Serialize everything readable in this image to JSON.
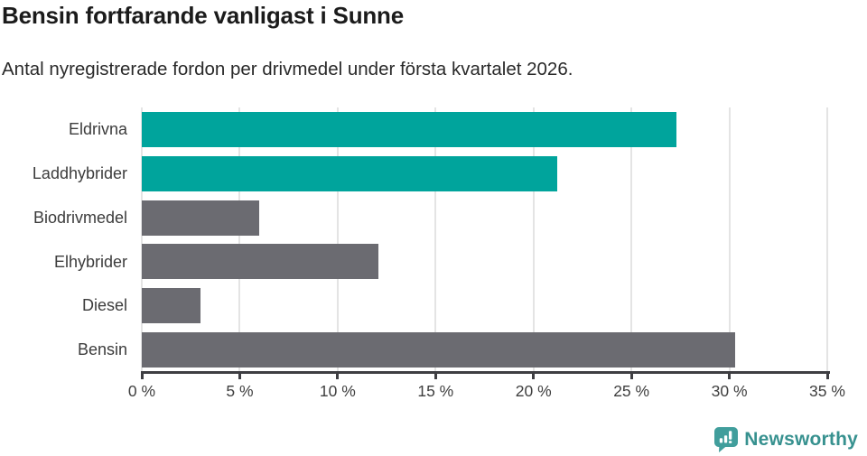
{
  "header": {
    "title": "Bensin fortfarande vanligast i Sunne",
    "subtitle": "Antal nyregistrerade fordon per drivmedel under första kvartalet 2026."
  },
  "chart_data": {
    "type": "bar",
    "orientation": "horizontal",
    "title": "Bensin fortfarande vanligast i Sunne",
    "subtitle": "Antal nyregistrerade fordon per drivmedel under första kvartalet 2026.",
    "categories": [
      "Eldrivna",
      "Laddhybrider",
      "Biodrivmedel",
      "Elhybrider",
      "Diesel",
      "Bensin"
    ],
    "values": [
      27.3,
      21.2,
      6.0,
      12.1,
      3.0,
      30.3
    ],
    "unit": "%",
    "xlim": [
      0,
      35
    ],
    "x_ticks": [
      0,
      5,
      10,
      15,
      20,
      25,
      30,
      35
    ],
    "x_tick_labels": [
      "0 %",
      "5 %",
      "10 %",
      "15 %",
      "20 %",
      "25 %",
      "30 %",
      "35 %"
    ],
    "grid": true,
    "legend": "none",
    "bar_colors": [
      "#00a49c",
      "#00a49c",
      "#6b6b71",
      "#6b6b71",
      "#6b6b71",
      "#6b6b71"
    ],
    "highlight_color": "#00a49c",
    "default_color": "#6b6b71",
    "gridline_color": "#e4e4e4",
    "axis_color": "#3e3e42"
  },
  "footer": {
    "brand": "Newsworthy",
    "brand_color": "#37918f",
    "icon_color": "#419e9c",
    "icon": "newsworthy-speech-bubble-chart-icon"
  }
}
